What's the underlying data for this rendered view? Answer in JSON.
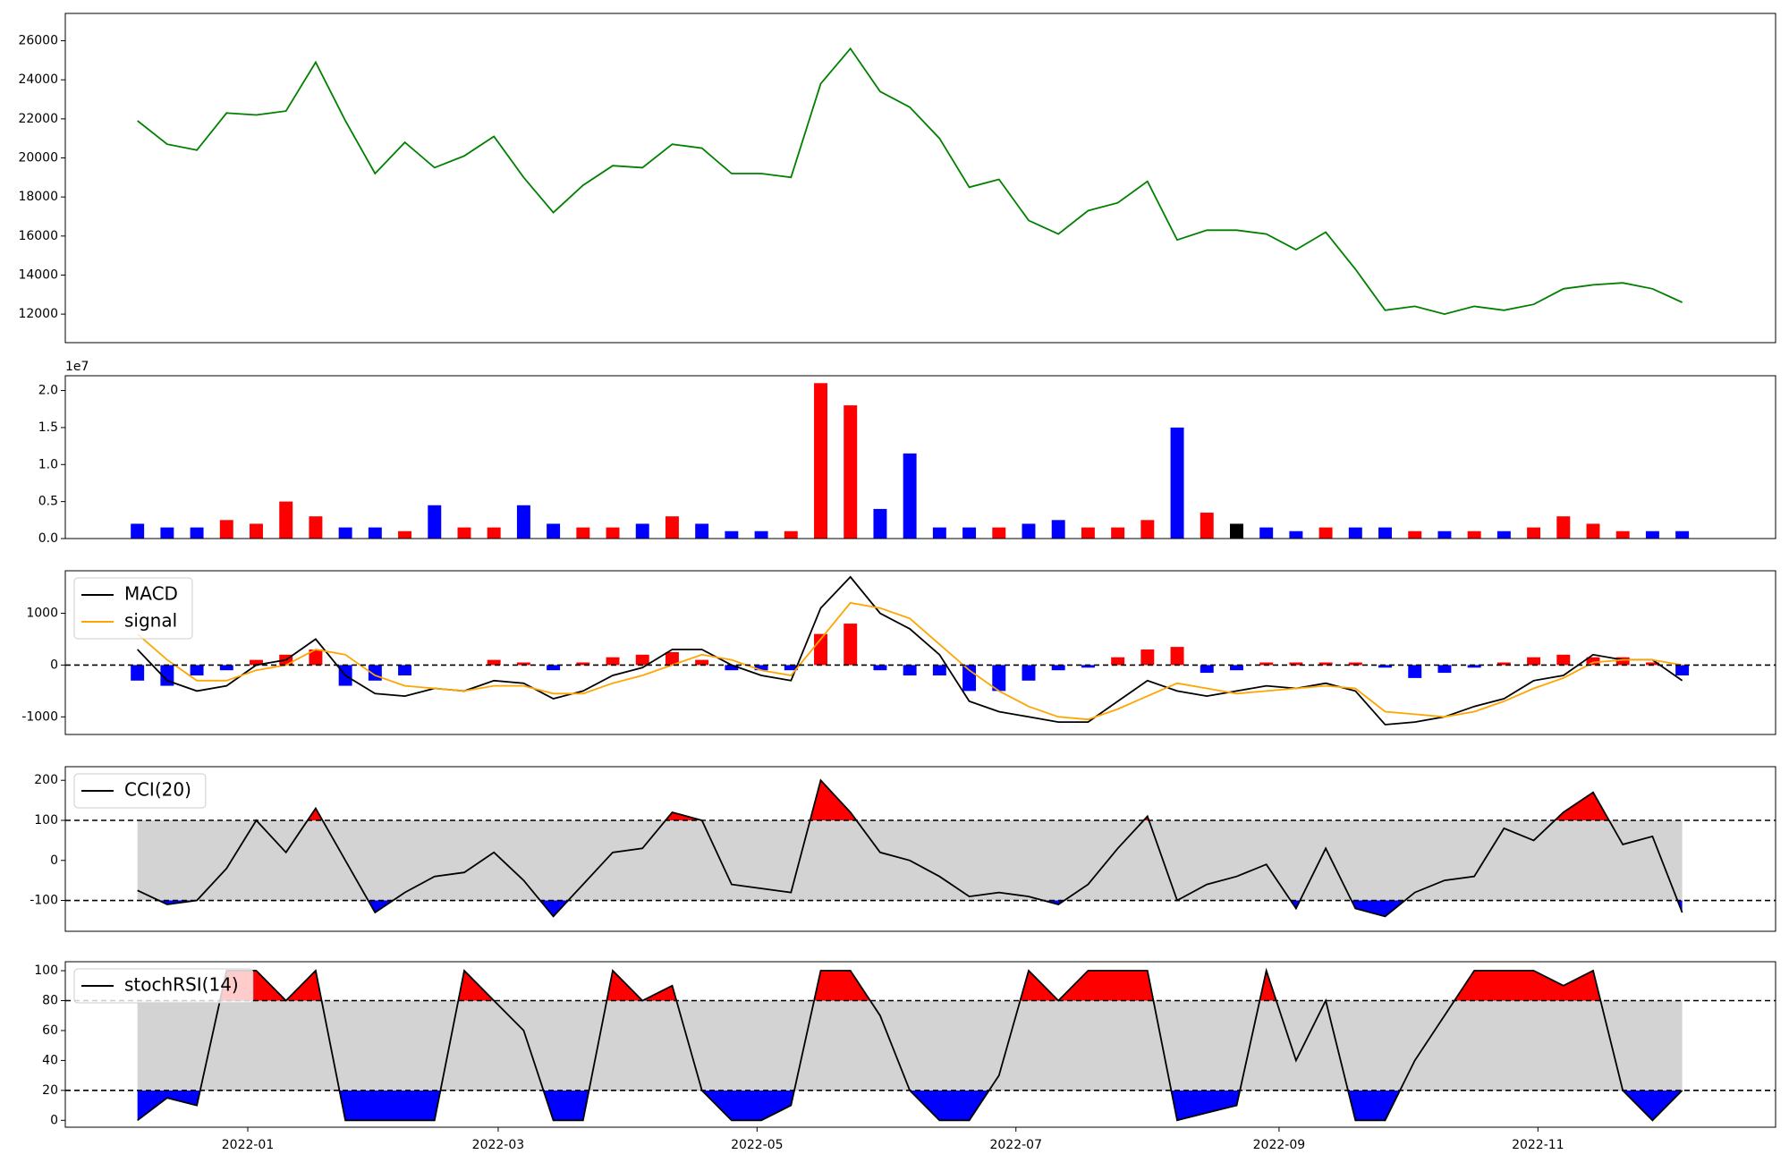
{
  "chart_data": [
    {
      "type": "line",
      "color": "green",
      "x": [
        "2021-12-06",
        "2021-12-13",
        "2021-12-20",
        "2021-12-27",
        "2022-01-03",
        "2022-01-10",
        "2022-01-17",
        "2022-01-24",
        "2022-01-31",
        "2022-02-07",
        "2022-02-14",
        "2022-02-21",
        "2022-02-28",
        "2022-03-07",
        "2022-03-14",
        "2022-03-21",
        "2022-03-28",
        "2022-04-04",
        "2022-04-11",
        "2022-04-18",
        "2022-04-25",
        "2022-05-02",
        "2022-05-09",
        "2022-05-16",
        "2022-05-23",
        "2022-05-30",
        "2022-06-06",
        "2022-06-13",
        "2022-06-20",
        "2022-06-27",
        "2022-07-04",
        "2022-07-11",
        "2022-07-18",
        "2022-07-25",
        "2022-08-01",
        "2022-08-08",
        "2022-08-15",
        "2022-08-22",
        "2022-08-29",
        "2022-09-05",
        "2022-09-12",
        "2022-09-19",
        "2022-09-26",
        "2022-10-03",
        "2022-10-10",
        "2022-10-17",
        "2022-10-24",
        "2022-10-31",
        "2022-11-07",
        "2022-11-14",
        "2022-11-21",
        "2022-11-28",
        "2022-12-05"
      ],
      "values": [
        21900,
        20700,
        20400,
        22300,
        22200,
        22400,
        24900,
        21900,
        19200,
        20800,
        19500,
        20100,
        21100,
        19000,
        17200,
        18600,
        19600,
        19500,
        20700,
        20500,
        19200,
        19200,
        19000,
        23800,
        25600,
        23400,
        22600,
        21000,
        18500,
        18900,
        16800,
        16100,
        17300,
        17700,
        18800,
        15800,
        16300,
        16300,
        16100,
        15300,
        16200,
        14300,
        12200,
        12400,
        12000,
        12400,
        12200,
        12500,
        13300,
        13500,
        13600,
        13300,
        12600
      ],
      "xlim": [
        "2021-11-19",
        "2022-12-27"
      ],
      "ylim": [
        10540,
        27400
      ],
      "yticks": [
        12000,
        14000,
        16000,
        18000,
        20000,
        22000,
        24000,
        26000
      ]
    },
    {
      "type": "bar",
      "offset_label": "1e7",
      "x": [
        "2021-12-06",
        "2021-12-13",
        "2021-12-20",
        "2021-12-27",
        "2022-01-03",
        "2022-01-10",
        "2022-01-17",
        "2022-01-24",
        "2022-01-31",
        "2022-02-07",
        "2022-02-14",
        "2022-02-21",
        "2022-02-28",
        "2022-03-07",
        "2022-03-14",
        "2022-03-21",
        "2022-03-28",
        "2022-04-04",
        "2022-04-11",
        "2022-04-18",
        "2022-04-25",
        "2022-05-02",
        "2022-05-09",
        "2022-05-16",
        "2022-05-23",
        "2022-05-30",
        "2022-06-06",
        "2022-06-13",
        "2022-06-20",
        "2022-06-27",
        "2022-07-04",
        "2022-07-11",
        "2022-07-18",
        "2022-07-25",
        "2022-08-01",
        "2022-08-08",
        "2022-08-15",
        "2022-08-22",
        "2022-08-29",
        "2022-09-05",
        "2022-09-12",
        "2022-09-19",
        "2022-09-26",
        "2022-10-03",
        "2022-10-10",
        "2022-10-17",
        "2022-10-24",
        "2022-10-31",
        "2022-11-07",
        "2022-11-14",
        "2022-11-21",
        "2022-11-28",
        "2022-12-05"
      ],
      "values": [
        0.2,
        0.15,
        0.15,
        0.25,
        0.2,
        0.5,
        0.3,
        0.15,
        0.15,
        0.1,
        0.45,
        0.15,
        0.15,
        0.45,
        0.2,
        0.15,
        0.15,
        0.2,
        0.3,
        0.2,
        0.1,
        0.1,
        0.1,
        2.1,
        1.8,
        0.4,
        1.15,
        0.15,
        0.15,
        0.15,
        0.2,
        0.25,
        0.15,
        0.15,
        0.25,
        1.5,
        0.35,
        0.2,
        0.15,
        0.1,
        0.15,
        0.15,
        0.15,
        0.1,
        0.1,
        0.1,
        0.1,
        0.15,
        0.3,
        0.2,
        0.1,
        0.1,
        0.1
      ],
      "colors": [
        "blue",
        "blue",
        "blue",
        "red",
        "red",
        "red",
        "red",
        "blue",
        "blue",
        "red",
        "blue",
        "red",
        "red",
        "blue",
        "blue",
        "red",
        "red",
        "blue",
        "red",
        "blue",
        "blue",
        "blue",
        "red",
        "red",
        "red",
        "blue",
        "blue",
        "blue",
        "blue",
        "red",
        "blue",
        "blue",
        "red",
        "red",
        "red",
        "blue",
        "red",
        "black",
        "blue",
        "blue",
        "red",
        "blue",
        "blue",
        "red",
        "blue",
        "red",
        "blue",
        "red",
        "red",
        "red",
        "red",
        "blue",
        "blue"
      ],
      "xlim": [
        "2021-11-19",
        "2022-12-27"
      ],
      "ylim": [
        0,
        2.2
      ],
      "yticks": [
        {
          "value": 0,
          "label": "0.0"
        },
        0.5,
        {
          "value": 1,
          "label": "1.0"
        },
        1.5,
        {
          "value": 2,
          "label": "2.0"
        }
      ]
    },
    {
      "type": "macd",
      "legend": "upper left",
      "x": [
        "2021-12-06",
        "2021-12-13",
        "2021-12-20",
        "2021-12-27",
        "2022-01-03",
        "2022-01-10",
        "2022-01-17",
        "2022-01-24",
        "2022-01-31",
        "2022-02-07",
        "2022-02-14",
        "2022-02-21",
        "2022-02-28",
        "2022-03-07",
        "2022-03-14",
        "2022-03-21",
        "2022-03-28",
        "2022-04-04",
        "2022-04-11",
        "2022-04-18",
        "2022-04-25",
        "2022-05-02",
        "2022-05-09",
        "2022-05-16",
        "2022-05-23",
        "2022-05-30",
        "2022-06-06",
        "2022-06-13",
        "2022-06-20",
        "2022-06-27",
        "2022-07-04",
        "2022-07-11",
        "2022-07-18",
        "2022-07-25",
        "2022-08-01",
        "2022-08-08",
        "2022-08-15",
        "2022-08-22",
        "2022-08-29",
        "2022-09-05",
        "2022-09-12",
        "2022-09-19",
        "2022-09-26",
        "2022-10-03",
        "2022-10-10",
        "2022-10-17",
        "2022-10-24",
        "2022-10-31",
        "2022-11-07",
        "2022-11-14",
        "2022-11-21",
        "2022-11-28",
        "2022-12-05"
      ],
      "series": [
        {
          "name": "MACD",
          "color": "black",
          "values": [
            300,
            -300,
            -500,
            -400,
            0,
            100,
            500,
            -200,
            -550,
            -600,
            -450,
            -500,
            -300,
            -350,
            -650,
            -500,
            -200,
            -50,
            300,
            300,
            0,
            -200,
            -300,
            1100,
            1700,
            1000,
            700,
            200,
            -700,
            -900,
            -1000,
            -1100,
            -1100,
            -700,
            -300,
            -500,
            -600,
            -500,
            -400,
            -450,
            -350,
            -500,
            -1150,
            -1100,
            -1000,
            -800,
            -650,
            -300,
            -200,
            200,
            100,
            100,
            -300
          ]
        },
        {
          "name": "signal",
          "color": "orange",
          "values": [
            600,
            100,
            -300,
            -300,
            -100,
            0,
            300,
            200,
            -200,
            -400,
            -450,
            -500,
            -400,
            -400,
            -550,
            -550,
            -350,
            -200,
            0,
            200,
            100,
            -100,
            -200,
            500,
            1200,
            1100,
            900,
            400,
            -100,
            -500,
            -800,
            -1000,
            -1050,
            -850,
            -600,
            -350,
            -450,
            -550,
            -500,
            -450,
            -400,
            -450,
            -900,
            -950,
            -1000,
            -900,
            -700,
            -450,
            -250,
            50,
            100,
            100,
            0
          ]
        }
      ],
      "hist": [
        -300,
        -400,
        -200,
        -100,
        100,
        200,
        300,
        -400,
        -300,
        -200,
        0,
        0,
        100,
        50,
        -100,
        50,
        150,
        200,
        250,
        100,
        -100,
        -100,
        -100,
        600,
        800,
        -100,
        -200,
        -200,
        -500,
        -500,
        -300,
        -100,
        -50,
        150,
        300,
        350,
        -150,
        -100,
        50,
        50,
        50,
        50,
        -50,
        -250,
        -150,
        -50,
        50,
        150,
        200,
        150,
        150,
        50,
        -200
      ],
      "hist_colors": {
        "positive": "red",
        "negative": "blue"
      },
      "hlines": [
        0
      ],
      "xlim": [
        "2021-11-19",
        "2022-12-27"
      ],
      "ylim": [
        -1340,
        1820
      ],
      "yticks": [
        -1000,
        0,
        1000
      ]
    },
    {
      "type": "band",
      "legend": "upper left",
      "x": [
        "2021-12-06",
        "2021-12-13",
        "2021-12-20",
        "2021-12-27",
        "2022-01-03",
        "2022-01-10",
        "2022-01-17",
        "2022-01-24",
        "2022-01-31",
        "2022-02-07",
        "2022-02-14",
        "2022-02-21",
        "2022-02-28",
        "2022-03-07",
        "2022-03-14",
        "2022-03-21",
        "2022-03-28",
        "2022-04-04",
        "2022-04-11",
        "2022-04-18",
        "2022-04-25",
        "2022-05-02",
        "2022-05-09",
        "2022-05-16",
        "2022-05-23",
        "2022-05-30",
        "2022-06-06",
        "2022-06-13",
        "2022-06-20",
        "2022-06-27",
        "2022-07-04",
        "2022-07-11",
        "2022-07-18",
        "2022-07-25",
        "2022-08-01",
        "2022-08-08",
        "2022-08-15",
        "2022-08-22",
        "2022-08-29",
        "2022-09-05",
        "2022-09-12",
        "2022-09-19",
        "2022-09-26",
        "2022-10-03",
        "2022-10-10",
        "2022-10-17",
        "2022-10-24",
        "2022-10-31",
        "2022-11-07",
        "2022-11-14",
        "2022-11-21",
        "2022-11-28",
        "2022-12-05"
      ],
      "series": [
        {
          "name": "CCI(20)",
          "color": "black",
          "values": [
            -75,
            -110,
            -100,
            -20,
            100,
            20,
            130,
            0,
            -130,
            -80,
            -40,
            -30,
            20,
            -50,
            -140,
            -60,
            20,
            30,
            120,
            100,
            -60,
            -70,
            -80,
            200,
            120,
            20,
            0,
            -40,
            -90,
            -80,
            -90,
            -110,
            -60,
            30,
            110,
            -100,
            -60,
            -40,
            -10,
            -120,
            30,
            -120,
            -140,
            -80,
            -50,
            -40,
            80,
            50,
            120,
            170,
            40,
            60,
            -130
          ]
        }
      ],
      "thresholds": [
        100,
        -100
      ],
      "upper_color": "red",
      "lower_color": "blue",
      "band_color": "lightgray",
      "xlim": [
        "2021-11-19",
        "2022-12-27"
      ],
      "ylim": [
        -177,
        234
      ],
      "yticks": [
        -100,
        0,
        100,
        200
      ]
    },
    {
      "type": "band",
      "legend": "upper left",
      "x": [
        "2021-12-06",
        "2021-12-13",
        "2021-12-20",
        "2021-12-27",
        "2022-01-03",
        "2022-01-10",
        "2022-01-17",
        "2022-01-24",
        "2022-01-31",
        "2022-02-07",
        "2022-02-14",
        "2022-02-21",
        "2022-02-28",
        "2022-03-07",
        "2022-03-14",
        "2022-03-21",
        "2022-03-28",
        "2022-04-04",
        "2022-04-11",
        "2022-04-18",
        "2022-04-25",
        "2022-05-02",
        "2022-05-09",
        "2022-05-16",
        "2022-05-23",
        "2022-05-30",
        "2022-06-06",
        "2022-06-13",
        "2022-06-20",
        "2022-06-27",
        "2022-07-04",
        "2022-07-11",
        "2022-07-18",
        "2022-07-25",
        "2022-08-01",
        "2022-08-08",
        "2022-08-15",
        "2022-08-22",
        "2022-08-29",
        "2022-09-05",
        "2022-09-12",
        "2022-09-19",
        "2022-09-26",
        "2022-10-03",
        "2022-10-10",
        "2022-10-17",
        "2022-10-24",
        "2022-10-31",
        "2022-11-07",
        "2022-11-14",
        "2022-11-21",
        "2022-11-28",
        "2022-12-05"
      ],
      "series": [
        {
          "name": "stochRSI(14)",
          "color": "black",
          "values": [
            0,
            15,
            10,
            100,
            100,
            80,
            100,
            0,
            0,
            0,
            0,
            100,
            80,
            60,
            0,
            0,
            100,
            80,
            90,
            20,
            0,
            0,
            10,
            100,
            100,
            70,
            20,
            0,
            0,
            30,
            100,
            80,
            100,
            100,
            100,
            0,
            5,
            10,
            100,
            40,
            80,
            0,
            0,
            40,
            70,
            100,
            100,
            100,
            90,
            100,
            20,
            0,
            20
          ]
        }
      ],
      "thresholds": [
        80,
        20
      ],
      "upper_color": "red",
      "lower_color": "blue",
      "band_color": "lightgray",
      "xlim": [
        "2021-11-19",
        "2022-12-27"
      ],
      "ylim": [
        -4.6,
        106
      ],
      "yticks": [
        0,
        20,
        40,
        60,
        80,
        100
      ],
      "xticks": [
        {
          "value": "2022-01-01",
          "label": "2022-01"
        },
        {
          "value": "2022-03-01",
          "label": "2022-03"
        },
        {
          "value": "2022-05-01",
          "label": "2022-05"
        },
        {
          "value": "2022-07-01",
          "label": "2022-07"
        },
        {
          "value": "2022-09-01",
          "label": "2022-09"
        },
        {
          "value": "2022-11-01",
          "label": "2022-11"
        }
      ]
    }
  ]
}
